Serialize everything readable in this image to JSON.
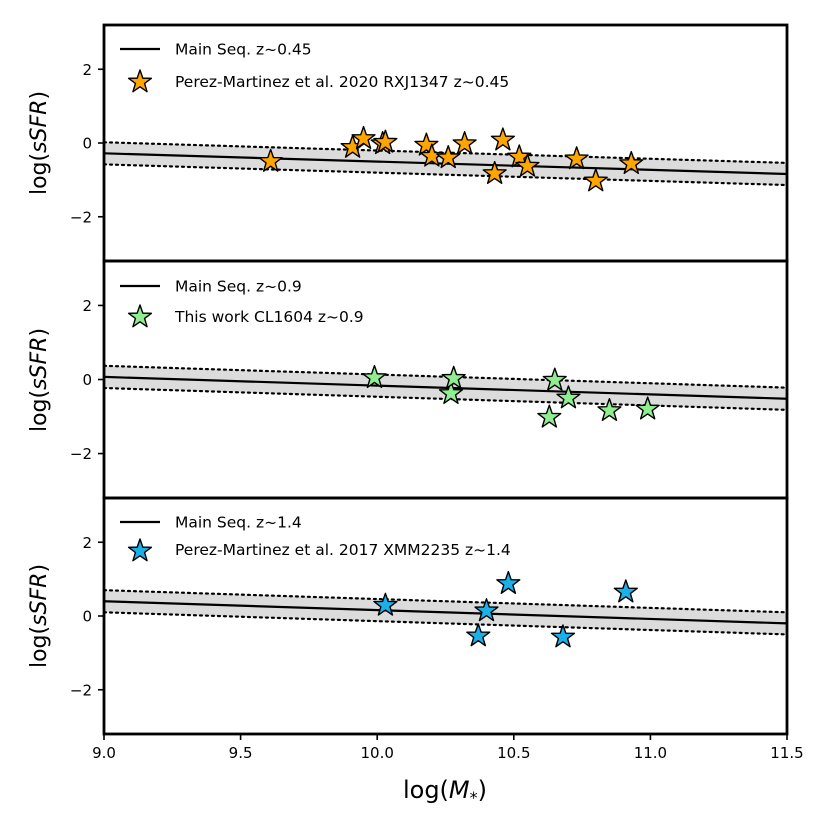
{
  "chart_data": [
    {
      "type": "scatter",
      "ylabel": "log(sSFR)",
      "ylim": [
        -3.2,
        3.2
      ],
      "yticks": [
        "2",
        "0",
        "−2"
      ],
      "main_sequence": {
        "label": "Main Seq. z~0.45",
        "x": [
          9.0,
          11.5
        ],
        "y": [
          -0.28,
          -0.84
        ],
        "band": 0.3
      },
      "series": [
        {
          "name": "Perez-Martinez et al. 2020 RXJ1347 z~0.45",
          "color": "#FFA500",
          "points": [
            [
              9.61,
              -0.5
            ],
            [
              9.91,
              -0.12
            ],
            [
              9.95,
              0.12
            ],
            [
              10.02,
              -0.02
            ],
            [
              10.03,
              0.02
            ],
            [
              10.18,
              -0.06
            ],
            [
              10.2,
              -0.36
            ],
            [
              10.26,
              -0.4
            ],
            [
              10.32,
              -0.02
            ],
            [
              10.43,
              -0.83
            ],
            [
              10.46,
              0.08
            ],
            [
              10.52,
              -0.38
            ],
            [
              10.55,
              -0.63
            ],
            [
              10.73,
              -0.43
            ],
            [
              10.8,
              -1.03
            ],
            [
              10.93,
              -0.56
            ]
          ]
        }
      ]
    },
    {
      "type": "scatter",
      "ylabel": "log(sSFR)",
      "ylim": [
        -3.2,
        3.2
      ],
      "yticks": [
        "2",
        "0",
        "−2"
      ],
      "main_sequence": {
        "label": "Main Seq. z~0.9",
        "x": [
          9.0,
          11.5
        ],
        "y": [
          0.07,
          -0.52
        ],
        "band": 0.3
      },
      "series": [
        {
          "name": "This work CL1604 z~0.9",
          "color": "#90EE90",
          "points": [
            [
              9.99,
              0.05
            ],
            [
              10.27,
              -0.38
            ],
            [
              10.28,
              0.03
            ],
            [
              10.63,
              -1.02
            ],
            [
              10.65,
              -0.02
            ],
            [
              10.7,
              -0.5
            ],
            [
              10.85,
              -0.84
            ],
            [
              10.99,
              -0.8
            ]
          ]
        }
      ]
    },
    {
      "type": "scatter",
      "ylabel": "log(sSFR)",
      "ylim": [
        -3.2,
        3.2
      ],
      "yticks": [
        "2",
        "0",
        "−2"
      ],
      "main_sequence": {
        "label": "Main Seq. z~1.4",
        "x": [
          9.0,
          11.5
        ],
        "y": [
          0.4,
          -0.2
        ],
        "band": 0.3
      },
      "series": [
        {
          "name": "Perez-Martinez et al. 2017 XMM2235 z~1.4",
          "color": "#1CB0E8",
          "points": [
            [
              10.03,
              0.29
            ],
            [
              10.37,
              -0.54
            ],
            [
              10.4,
              0.14
            ],
            [
              10.48,
              0.88
            ],
            [
              10.68,
              -0.57
            ],
            [
              10.91,
              0.65
            ]
          ]
        }
      ]
    }
  ],
  "xaxis": {
    "label": "log(M*)",
    "xlim": [
      9.0,
      11.5
    ],
    "ticks": [
      9.0,
      9.5,
      10.0,
      10.5,
      11.0,
      11.5
    ],
    "tick_labels": [
      "9.0",
      "9.5",
      "10.0",
      "10.5",
      "11.0",
      "11.5"
    ]
  }
}
